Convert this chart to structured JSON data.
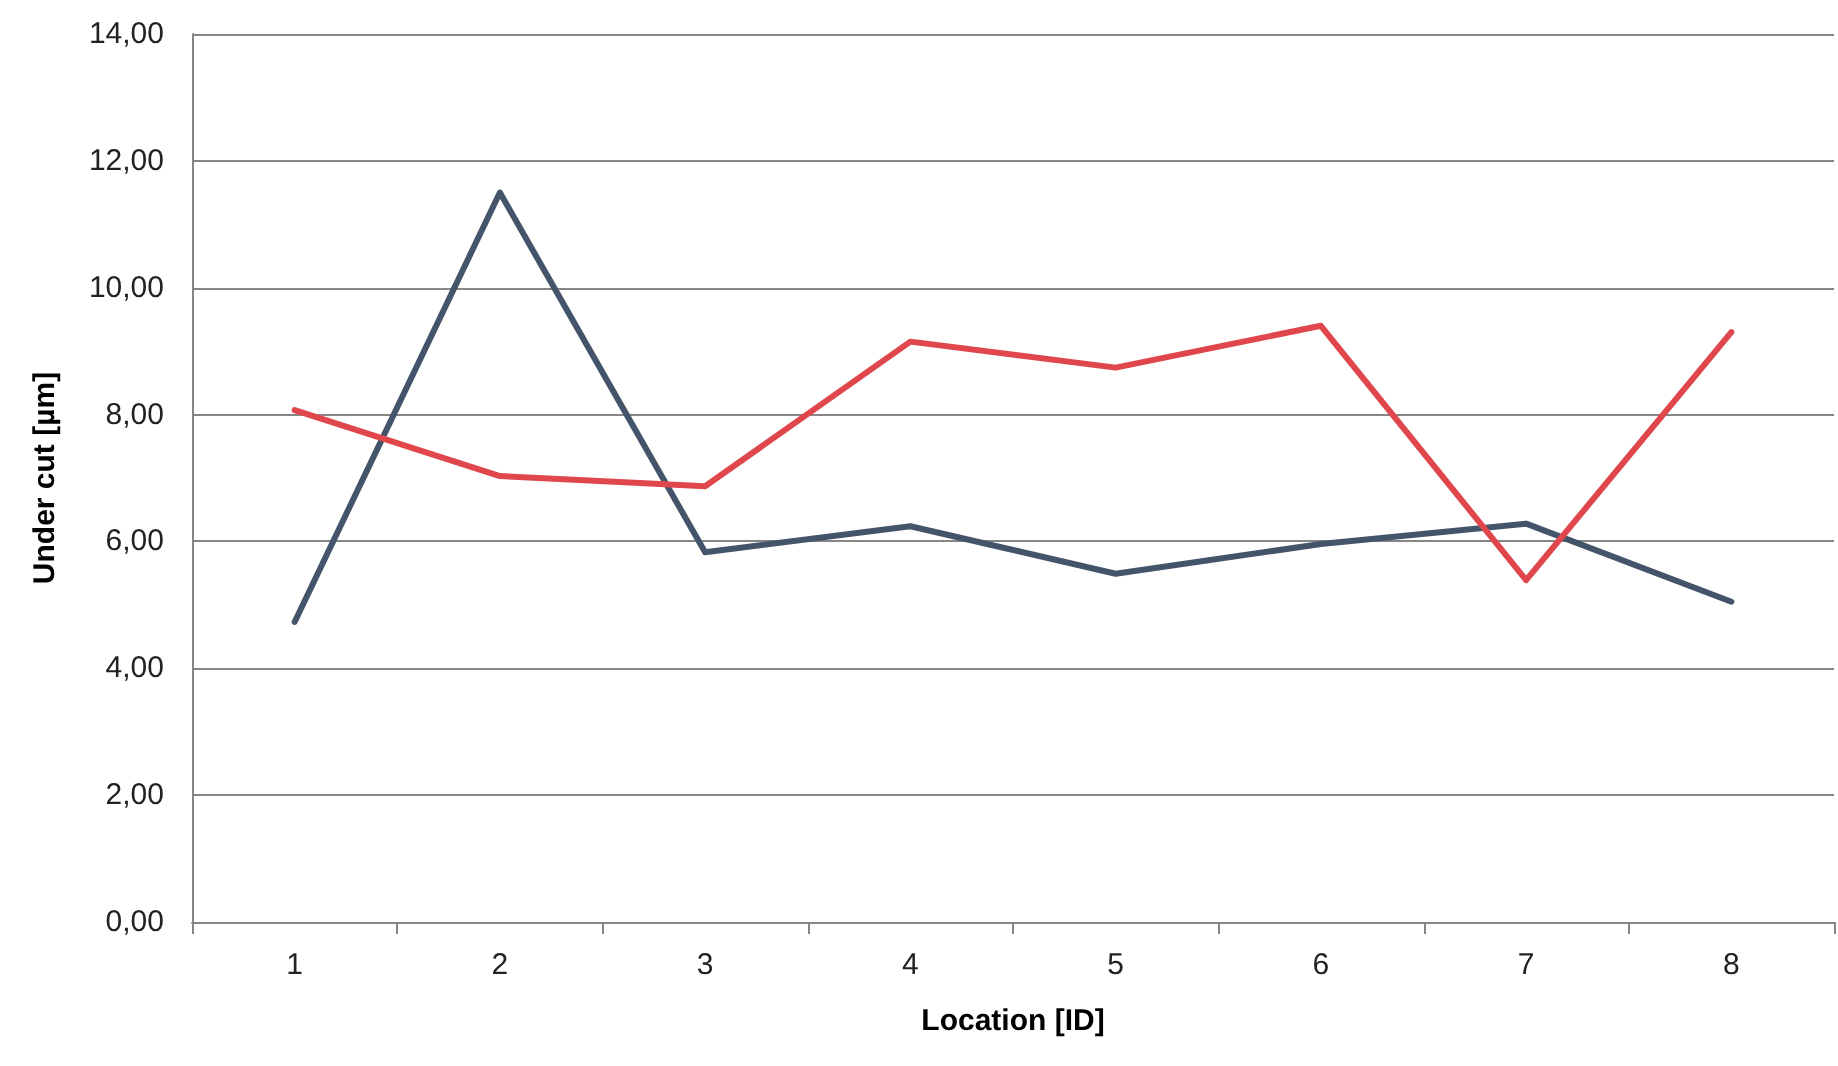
{
  "chart_data": {
    "type": "line",
    "xlabel": "Location [ID]",
    "ylabel": "Under cut [µm]",
    "categories": [
      "1",
      "2",
      "3",
      "4",
      "5",
      "6",
      "7",
      "8"
    ],
    "series": [
      {
        "color": "#44546a",
        "values": [
          4.73,
          11.5,
          5.83,
          6.24,
          5.49,
          5.96,
          6.28,
          5.05
        ]
      },
      {
        "color": "#e0474c",
        "values": [
          8.07,
          7.03,
          6.87,
          9.15,
          8.74,
          9.4,
          5.39,
          9.3
        ]
      }
    ],
    "ylim": [
      0,
      14
    ],
    "yticks": [
      {
        "value": 0,
        "label": "0,00"
      },
      {
        "value": 2,
        "label": "2,00"
      },
      {
        "value": 4,
        "label": "4,00"
      },
      {
        "value": 6,
        "label": "6,00"
      },
      {
        "value": 8,
        "label": "8,00"
      },
      {
        "value": 10,
        "label": "10,00"
      },
      {
        "value": 12,
        "label": "12,00"
      },
      {
        "value": 14,
        "label": "14,00"
      }
    ],
    "grid": "y",
    "marker": "none",
    "line_style": "solid"
  }
}
